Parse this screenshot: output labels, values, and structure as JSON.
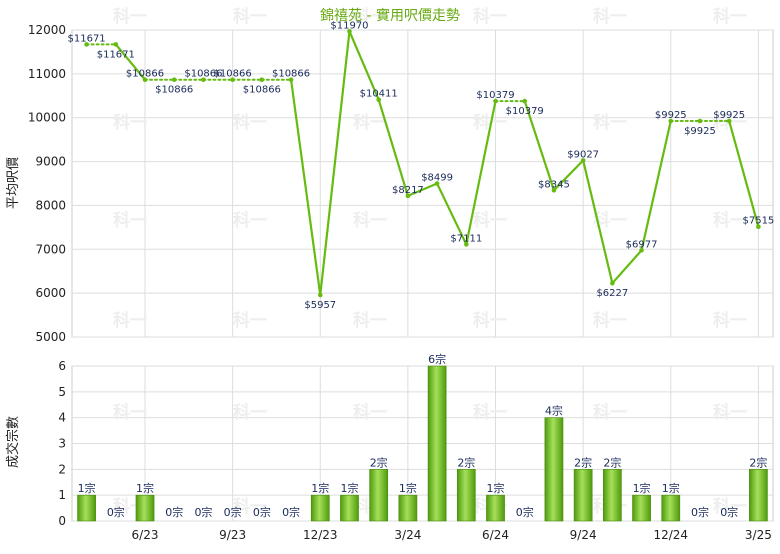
{
  "chart_data": [
    {
      "type": "line",
      "title": "錦禧苑 - 實用呎價走勢",
      "ylabel": "平均呎價",
      "ylim": [
        5000,
        12000
      ],
      "yticks": [
        5000,
        6000,
        7000,
        8000,
        9000,
        10000,
        11000,
        12000
      ],
      "x_tick_labels": [
        "6/23",
        "9/23",
        "12/23",
        "3/24",
        "6/24",
        "9/24",
        "12/24",
        "3/25"
      ],
      "series": [
        {
          "values": [
            11671,
            11671,
            10866,
            10866,
            10866,
            10866,
            10866,
            10866,
            5957,
            11970,
            10411,
            8217,
            8499,
            7111,
            10379,
            10379,
            8345,
            9027,
            6227,
            6977,
            9925,
            9925,
            9925,
            7515
          ],
          "labels": [
            "$11671",
            "$11671",
            "$10866",
            "$10866",
            "$10866",
            "$10866",
            "$10866",
            "$10866",
            "$5957",
            "$11970",
            "$10411",
            "$8217",
            "$8499",
            "$7111",
            "$10379",
            "$10379",
            "$8345",
            "$9027",
            "$6227",
            "$6977",
            "$9925",
            "$9925",
            "$9925",
            "$7515"
          ],
          "carried_forward": [
            false,
            true,
            false,
            true,
            true,
            true,
            true,
            true,
            false,
            false,
            false,
            false,
            false,
            false,
            false,
            true,
            false,
            false,
            false,
            false,
            false,
            true,
            true,
            false
          ]
        }
      ],
      "color": "#66bb11",
      "grid": true,
      "watermark": "科一"
    },
    {
      "type": "bar",
      "ylabel": "成交宗數",
      "ylim": [
        0,
        6
      ],
      "yticks": [
        0,
        1,
        2,
        3,
        4,
        5,
        6
      ],
      "x_tick_labels": [
        "6/23",
        "9/23",
        "12/23",
        "3/24",
        "6/24",
        "9/24",
        "12/24",
        "3/25"
      ],
      "series": [
        {
          "values": [
            1,
            0,
            1,
            0,
            0,
            0,
            0,
            0,
            1,
            1,
            2,
            1,
            6,
            2,
            1,
            0,
            4,
            2,
            2,
            1,
            1,
            0,
            0,
            2
          ],
          "labels": [
            "1宗",
            "0宗",
            "1宗",
            "0宗",
            "0宗",
            "0宗",
            "0宗",
            "0宗",
            "1宗",
            "1宗",
            "2宗",
            "1宗",
            "6宗",
            "2宗",
            "1宗",
            "0宗",
            "4宗",
            "2宗",
            "2宗",
            "1宗",
            "1宗",
            "0宗",
            "0宗",
            "2宗"
          ]
        }
      ],
      "color": "#66bb11",
      "grid": true,
      "watermark": "科一"
    }
  ]
}
